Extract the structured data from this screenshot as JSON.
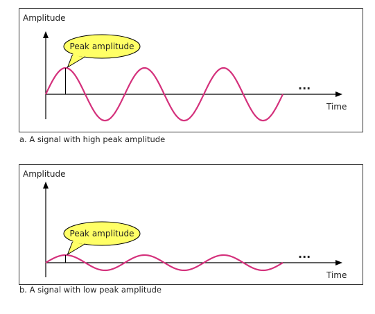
{
  "panels": [
    {
      "y_label": "Amplitude",
      "x_label": "Time",
      "callout": "Peak amplitude",
      "ellipsis": "...",
      "caption": "a. A signal with high peak amplitude"
    },
    {
      "y_label": "Amplitude",
      "x_label": "Time",
      "callout": "Peak amplitude",
      "ellipsis": "...",
      "caption": "b. A signal with low peak amplitude"
    }
  ]
}
